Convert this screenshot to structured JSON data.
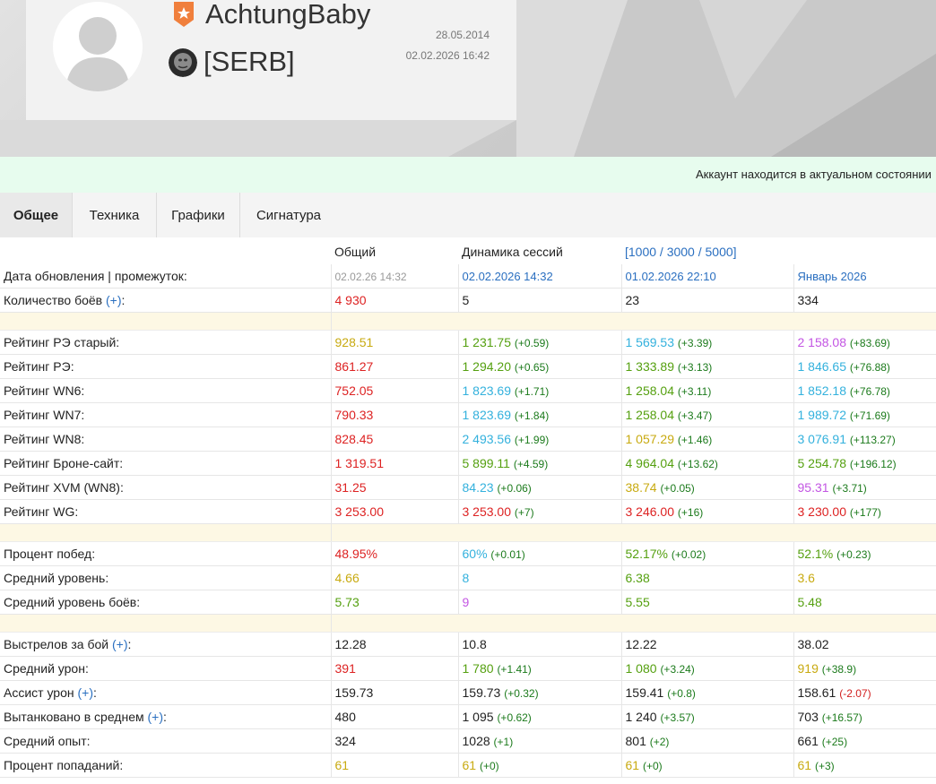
{
  "profile": {
    "username": "AchtungBaby",
    "clan_tag": "[SERB]",
    "registered": "28.05.2014",
    "last_battle": "02.02.2026 16:42"
  },
  "status_message": "Аккаунт находится в актуальном состоянии",
  "tabs": [
    "Общее",
    "Техника",
    "Графики",
    "Сигнатура"
  ],
  "columns": {
    "overall": "Общий",
    "dynamics": "Динамика сессий",
    "ranges": "[1000 / 3000 / 5000]"
  },
  "update_row": {
    "label": "Дата обновления | промежуток:",
    "values": [
      "02.02.26 14:32",
      "02.02.2026 14:32",
      "01.02.2026 22:10",
      "Январь 2026"
    ]
  },
  "battles_row": {
    "label": "Количество боёв",
    "plus": "(+)",
    "values": [
      "4 930",
      "5",
      "23",
      "334"
    ]
  },
  "rating_rows": [
    {
      "label": "Рейтинг РЭ старый:",
      "cells": [
        {
          "v": "928.51",
          "c": "yellow"
        },
        {
          "v": "1 231.75",
          "d": "(+0.59)",
          "c": "green"
        },
        {
          "v": "1 569.53",
          "d": "(+3.39)",
          "c": "cyan"
        },
        {
          "v": "2 158.08",
          "d": "(+83.69)",
          "c": "purple"
        }
      ]
    },
    {
      "label": "Рейтинг РЭ:",
      "cells": [
        {
          "v": "861.27",
          "c": "red"
        },
        {
          "v": "1 294.20",
          "d": "(+0.65)",
          "c": "green"
        },
        {
          "v": "1 333.89",
          "d": "(+3.13)",
          "c": "green"
        },
        {
          "v": "1 846.65",
          "d": "(+76.88)",
          "c": "cyan"
        }
      ]
    },
    {
      "label": "Рейтинг WN6:",
      "cells": [
        {
          "v": "752.05",
          "c": "red"
        },
        {
          "v": "1 823.69",
          "d": "(+1.71)",
          "c": "cyan"
        },
        {
          "v": "1 258.04",
          "d": "(+3.11)",
          "c": "green"
        },
        {
          "v": "1 852.18",
          "d": "(+76.78)",
          "c": "cyan"
        }
      ]
    },
    {
      "label": "Рейтинг WN7:",
      "cells": [
        {
          "v": "790.33",
          "c": "red"
        },
        {
          "v": "1 823.69",
          "d": "(+1.84)",
          "c": "cyan"
        },
        {
          "v": "1 258.04",
          "d": "(+3.47)",
          "c": "green"
        },
        {
          "v": "1 989.72",
          "d": "(+71.69)",
          "c": "cyan"
        }
      ]
    },
    {
      "label": "Рейтинг WN8:",
      "cells": [
        {
          "v": "828.45",
          "c": "red"
        },
        {
          "v": "2 493.56",
          "d": "(+1.99)",
          "c": "cyan"
        },
        {
          "v": "1 057.29",
          "d": "(+1.46)",
          "c": "yellow"
        },
        {
          "v": "3 076.91",
          "d": "(+113.27)",
          "c": "cyan"
        }
      ]
    },
    {
      "label": "Рейтинг Броне-сайт:",
      "cells": [
        {
          "v": "1 319.51",
          "c": "red"
        },
        {
          "v": "5 899.11",
          "d": "(+4.59)",
          "c": "green"
        },
        {
          "v": "4 964.04",
          "d": "(+13.62)",
          "c": "green"
        },
        {
          "v": "5 254.78",
          "d": "(+196.12)",
          "c": "green"
        }
      ]
    },
    {
      "label": "Рейтинг XVM (WN8):",
      "cells": [
        {
          "v": "31.25",
          "c": "red"
        },
        {
          "v": "84.23",
          "d": "(+0.06)",
          "c": "cyan"
        },
        {
          "v": "38.74",
          "d": "(+0.05)",
          "c": "yellow"
        },
        {
          "v": "95.31",
          "d": "(+3.71)",
          "c": "purple"
        }
      ]
    },
    {
      "label": "Рейтинг WG:",
      "cells": [
        {
          "v": "3 253.00",
          "c": "red"
        },
        {
          "v": "3 253.00",
          "d": "(+7)",
          "c": "red"
        },
        {
          "v": "3 246.00",
          "d": "(+16)",
          "c": "red"
        },
        {
          "v": "3 230.00",
          "d": "(+177)",
          "c": "red"
        }
      ]
    }
  ],
  "winrate_rows": [
    {
      "label": "Процент побед:",
      "cells": [
        {
          "v": "48.95%",
          "c": "red"
        },
        {
          "v": "60%",
          "d": "(+0.01)",
          "c": "cyan"
        },
        {
          "v": "52.17%",
          "d": "(+0.02)",
          "c": "green"
        },
        {
          "v": "52.1%",
          "d": "(+0.23)",
          "c": "green"
        }
      ]
    },
    {
      "label": "Средний уровень:",
      "cells": [
        {
          "v": "4.66",
          "c": "yellow"
        },
        {
          "v": "8",
          "c": "cyan"
        },
        {
          "v": "6.38",
          "c": "green"
        },
        {
          "v": "3.6",
          "c": "yellow"
        }
      ]
    },
    {
      "label": "Средний уровень боёв:",
      "cells": [
        {
          "v": "5.73",
          "c": "green"
        },
        {
          "v": "9",
          "c": "purple"
        },
        {
          "v": "5.55",
          "c": "green"
        },
        {
          "v": "5.48",
          "c": "green"
        }
      ]
    }
  ],
  "perf_rows": [
    {
      "label": "Выстрелов за бой",
      "plus": "(+)",
      "cells": [
        {
          "v": "12.28",
          "c": "dark"
        },
        {
          "v": "10.8",
          "c": "dark"
        },
        {
          "v": "12.22",
          "c": "dark"
        },
        {
          "v": "38.02",
          "c": "dark"
        }
      ]
    },
    {
      "label": "Средний урон:",
      "cells": [
        {
          "v": "391",
          "c": "red"
        },
        {
          "v": "1 780",
          "d": "(+1.41)",
          "c": "green"
        },
        {
          "v": "1 080",
          "d": "(+3.24)",
          "c": "green"
        },
        {
          "v": "919",
          "d": "(+38.9)",
          "c": "yellow"
        }
      ]
    },
    {
      "label": "Ассист урон",
      "plus": "(+)",
      "cells": [
        {
          "v": "159.73",
          "c": "dark"
        },
        {
          "v": "159.73",
          "d": "(+0.32)",
          "c": "dark"
        },
        {
          "v": "159.41",
          "d": "(+0.8)",
          "c": "dark"
        },
        {
          "v": "158.61",
          "d": "(-2.07)",
          "c": "dark",
          "neg": true
        }
      ]
    },
    {
      "label": "Вытанковано в среднем",
      "plus": "(+)",
      "cells": [
        {
          "v": "480",
          "c": "dark"
        },
        {
          "v": "1 095",
          "d": "(+0.62)",
          "c": "dark"
        },
        {
          "v": "1 240",
          "d": "(+3.57)",
          "c": "dark"
        },
        {
          "v": "703",
          "d": "(+16.57)",
          "c": "dark"
        }
      ]
    },
    {
      "label": "Средний опыт:",
      "cells": [
        {
          "v": "324",
          "c": "dark"
        },
        {
          "v": "1028",
          "d": "(+1)",
          "c": "dark"
        },
        {
          "v": "801",
          "d": "(+2)",
          "c": "dark"
        },
        {
          "v": "661",
          "d": "(+25)",
          "c": "dark"
        }
      ]
    },
    {
      "label": "Процент попаданий:",
      "cells": [
        {
          "v": "61",
          "c": "yellow"
        },
        {
          "v": "61",
          "d": "(+0)",
          "c": "yellow"
        },
        {
          "v": "61",
          "d": "(+0)",
          "c": "yellow"
        },
        {
          "v": "61",
          "d": "(+3)",
          "c": "yellow"
        }
      ]
    }
  ]
}
